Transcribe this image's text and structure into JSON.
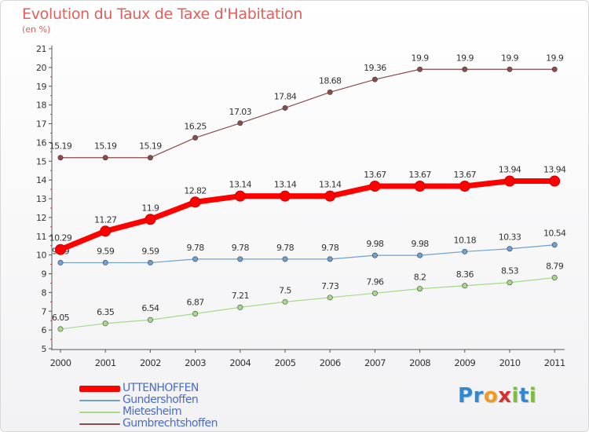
{
  "title": "Evolution du Taux de Taxe d'Habitation",
  "unit": "(en %)",
  "logo": {
    "text": "Proxiti",
    "letters": [
      {
        "ch": "P",
        "color": "#2f88d0"
      },
      {
        "ch": "r",
        "color": "#2f88d0"
      },
      {
        "ch": "o",
        "color": "#f29a1d"
      },
      {
        "ch": "x",
        "color": "#d8302e"
      },
      {
        "ch": "i",
        "color": "#7cbf3a"
      },
      {
        "ch": "t",
        "color": "#2f88d0"
      },
      {
        "ch": "i",
        "color": "#7cbf3a"
      }
    ]
  },
  "chart_data": {
    "type": "line",
    "title": "Evolution du Taux de Taxe d'Habitation",
    "ylabel": "(en %)",
    "xlabel": "",
    "x": [
      "2000",
      "2001",
      "2002",
      "2003",
      "2004",
      "2005",
      "2006",
      "2007",
      "2008",
      "2009",
      "2010",
      "2011"
    ],
    "ylim": [
      5,
      21
    ],
    "yticks": [
      "5",
      "6",
      "7",
      "8",
      "9",
      "10",
      "11",
      "12",
      "13",
      "14",
      "15",
      "16",
      "17",
      "18",
      "19",
      "20",
      "21"
    ],
    "grid": false,
    "legend_position": "bottom-left",
    "series": [
      {
        "name": "UTTENHOFFEN",
        "color": "#ff0000",
        "emphasis": true,
        "values": [
          10.29,
          11.27,
          11.9,
          12.82,
          13.14,
          13.14,
          13.14,
          13.67,
          13.67,
          13.67,
          13.94,
          13.94
        ],
        "labels": [
          "10.29",
          "11.27",
          "11.9",
          "12.82",
          "13.14",
          "13.14",
          "13.14",
          "13.67",
          "13.67",
          "13.67",
          "13.94",
          "13.94"
        ]
      },
      {
        "name": "Gundershoffen",
        "color": "#6fa0cf",
        "emphasis": false,
        "values": [
          9.59,
          9.59,
          9.59,
          9.78,
          9.78,
          9.78,
          9.78,
          9.98,
          9.98,
          10.18,
          10.33,
          10.54
        ],
        "labels": [
          "9.59",
          "9.59",
          "9.59",
          "9.78",
          "9.78",
          "9.78",
          "9.78",
          "9.98",
          "9.98",
          "10.18",
          "10.33",
          "10.54"
        ]
      },
      {
        "name": "Mietesheim",
        "color": "#a6d98a",
        "emphasis": false,
        "values": [
          6.05,
          6.35,
          6.54,
          6.87,
          7.21,
          7.5,
          7.73,
          7.96,
          8.2,
          8.36,
          8.53,
          8.79
        ],
        "labels": [
          "6.05",
          "6.35",
          "6.54",
          "6.87",
          "7.21",
          "7.5",
          "7.73",
          "7.96",
          "8.2",
          "8.36",
          "8.53",
          "8.79"
        ]
      },
      {
        "name": "Gumbrechtshoffen",
        "color": "#8a4b4b",
        "emphasis": false,
        "values": [
          15.19,
          15.19,
          15.19,
          16.25,
          17.03,
          17.84,
          18.68,
          19.36,
          19.9,
          19.9,
          19.9,
          19.9
        ],
        "labels": [
          "15.19",
          "15.19",
          "15.19",
          "16.25",
          "17.03",
          "17.84",
          "18.68",
          "19.36",
          "19.9",
          "19.9",
          "19.9",
          "19.9"
        ]
      }
    ]
  }
}
